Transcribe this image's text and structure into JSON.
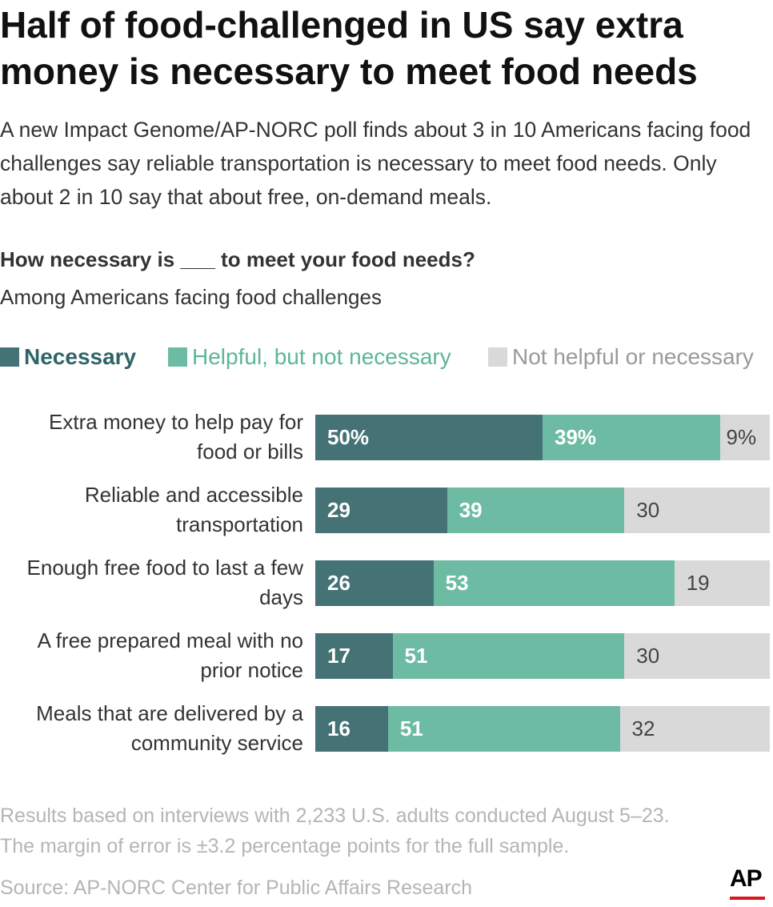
{
  "title": "Half of food-challenged in US say extra money is necessary to meet food needs",
  "subtitle": "A new Impact Genome/AP-NORC poll finds about 3 in 10 Americans facing food challenges say reliable transportation is necessary to meet food needs. Only about 2 in 10 say that about free, on-demand meals.",
  "question": "How necessary is ___ to meet your food needs?",
  "population": "Among Americans facing food challenges",
  "colors": {
    "necessary": "#457275",
    "helpful": "#6dbba3",
    "not_helpful": "#d9d9d9",
    "necessary_text": "#2f6466",
    "helpful_text": "#5cb69b",
    "not_helpful_text": "#9a9a9a"
  },
  "notes": {
    "line1": "Results based on interviews with 2,233 U.S. adults conducted August 5–23.",
    "line2": "The margin of error is ±3.2 percentage points for the full sample."
  },
  "source": "Source: AP-NORC Center for Public Affairs Research",
  "logo": "AP",
  "chart_data": {
    "type": "bar",
    "orientation": "horizontal",
    "stacked": true,
    "categories": [
      "Extra money to help pay for food or bills",
      "Reliable and accessible transportation",
      "Enough free food to last a few days",
      "A free prepared meal with no prior notice",
      "Meals that are delivered by a community service"
    ],
    "category_lines": [
      [
        "Extra money to help pay for",
        "food or bills"
      ],
      [
        "Reliable and accessible",
        "transportation"
      ],
      [
        "Enough free food to last a few",
        "days"
      ],
      [
        "A free prepared meal with no",
        "prior notice"
      ],
      [
        "Meals that are delivered by a",
        "community service"
      ]
    ],
    "series": [
      {
        "name": "Necessary",
        "values": [
          50,
          29,
          26,
          17,
          16
        ],
        "labels": [
          "50%",
          "29",
          "26",
          "17",
          "16"
        ]
      },
      {
        "name": "Helpful, but not necessary",
        "values": [
          39,
          39,
          53,
          51,
          51
        ],
        "labels": [
          "39%",
          "39",
          "53",
          "51",
          "51"
        ]
      },
      {
        "name": "Not helpful or necessary",
        "values": [
          9,
          30,
          19,
          30,
          32
        ],
        "labels": [
          "9%",
          "30",
          "19",
          "30",
          "32"
        ]
      }
    ],
    "xlim": [
      0,
      100
    ],
    "legend_position": "top",
    "xlabel": "",
    "ylabel": ""
  }
}
